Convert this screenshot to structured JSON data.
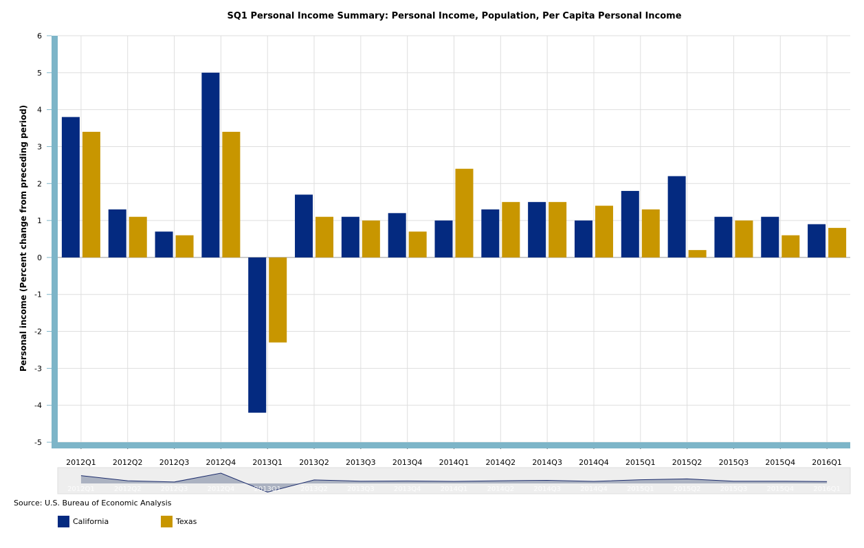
{
  "chart_data": {
    "type": "bar",
    "title": "SQ1 Personal Income Summary: Personal Income, Population, Per Capita Personal Income",
    "xlabel": "",
    "ylabel": "Personal income (Percent change from preceding period)",
    "ylim": [
      -5,
      6
    ],
    "yticks": [
      6,
      5,
      4,
      3,
      2,
      1,
      0,
      -1,
      -2,
      -3,
      -4,
      -5
    ],
    "grid": true,
    "legend_position": "bottom-left",
    "categories": [
      "2012Q1",
      "2012Q2",
      "2012Q3",
      "2012Q4",
      "2013Q1",
      "2013Q2",
      "2013Q3",
      "2013Q4",
      "2014Q1",
      "2014Q2",
      "2014Q3",
      "2014Q4",
      "2015Q1",
      "2015Q2",
      "2015Q3",
      "2015Q4",
      "2016Q1"
    ],
    "series": [
      {
        "name": "California",
        "color": "#042a80",
        "values": [
          3.8,
          1.3,
          0.7,
          5.0,
          -4.2,
          1.7,
          1.1,
          1.2,
          1.0,
          1.3,
          1.5,
          1.0,
          1.8,
          2.2,
          1.1,
          1.1,
          0.9
        ]
      },
      {
        "name": "Texas",
        "color": "#c89600",
        "values": [
          3.4,
          1.1,
          0.6,
          3.4,
          -2.3,
          1.1,
          1.0,
          0.7,
          2.4,
          1.5,
          1.5,
          1.4,
          1.3,
          0.2,
          1.0,
          0.6,
          0.8
        ]
      }
    ],
    "source": "Source: U.S. Bureau of Economic Analysis"
  },
  "colors": {
    "axis_bar": "#7db5c8",
    "grid": "#dedede",
    "navigator_bg": "#eeeeee",
    "navigator_fill": "#9aa3b5",
    "navigator_line": "#1c2c6c"
  }
}
